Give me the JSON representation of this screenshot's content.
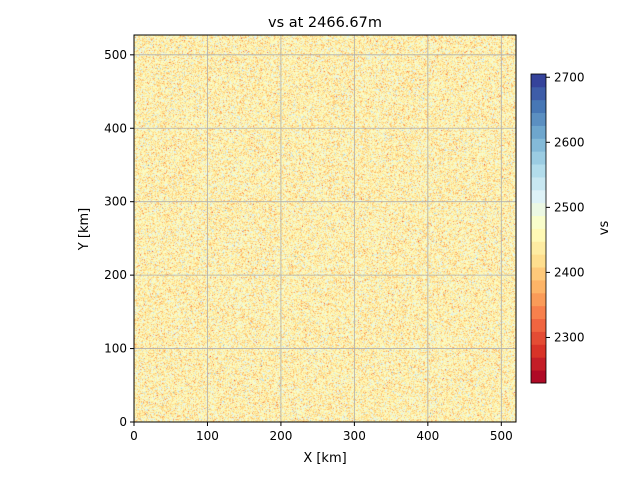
{
  "chart_data": {
    "type": "heatmap",
    "title": "vs at 2466.67m",
    "xlabel": "X [km]",
    "ylabel": "Y [km]",
    "xlim": [
      0,
      520
    ],
    "ylim": [
      0,
      527
    ],
    "x_ticks": [
      0,
      100,
      200,
      300,
      400,
      500
    ],
    "y_ticks": [
      0,
      100,
      200,
      300,
      400,
      500
    ],
    "grid": true,
    "colorbar": {
      "label": "vs",
      "range": [
        2230,
        2705
      ],
      "ticks": [
        2300,
        2400,
        2500,
        2600,
        2700
      ],
      "levels": 24,
      "colormap": "RdYlBu",
      "colors": [
        "#a50026",
        "#d73027",
        "#f46d43",
        "#fdae61",
        "#fee090",
        "#ffffbf",
        "#e0f3f8",
        "#abd9e9",
        "#74add1",
        "#4575b4",
        "#313695"
      ]
    },
    "field_summary": {
      "distribution": "random noise",
      "dominant_values": [
        2400,
        2500
      ],
      "typical_value": 2450
    }
  }
}
